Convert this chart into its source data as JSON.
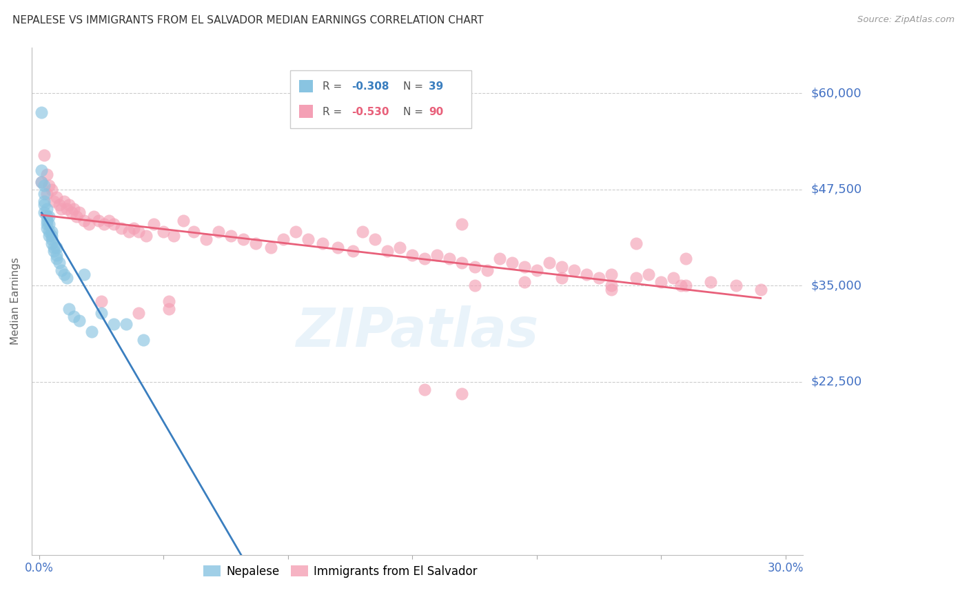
{
  "title": "NEPALESE VS IMMIGRANTS FROM EL SALVADOR MEDIAN EARNINGS CORRELATION CHART",
  "source": "Source: ZipAtlas.com",
  "ylabel": "Median Earnings",
  "color_blue": "#89c4e1",
  "color_pink": "#f4a0b5",
  "color_blue_line": "#3a7ebf",
  "color_pink_line": "#e8607a",
  "color_blue_dash": "#a0c8e8",
  "color_axis_labels": "#4472C4",
  "watermark": "ZIPatlas",
  "ymin": 0,
  "ymax": 66000,
  "xmin": -0.003,
  "xmax": 0.307,
  "ytick_vals": [
    22500,
    35000,
    47500,
    60000
  ],
  "ytick_labels": [
    "$22,500",
    "$35,000",
    "$47,500",
    "$60,000"
  ],
  "legend_box_blue_r": "R = ",
  "legend_box_blue_r_val": "-0.308",
  "legend_box_blue_n": "N = ",
  "legend_box_blue_n_val": "39",
  "legend_box_pink_r": "R = ",
  "legend_box_pink_r_val": "-0.530",
  "legend_box_pink_n": "N = ",
  "legend_box_pink_n_val": "90",
  "nepalese_x": [
    0.001,
    0.001,
    0.001,
    0.002,
    0.002,
    0.002,
    0.002,
    0.002,
    0.003,
    0.003,
    0.003,
    0.003,
    0.003,
    0.004,
    0.004,
    0.004,
    0.004,
    0.005,
    0.005,
    0.005,
    0.005,
    0.006,
    0.006,
    0.007,
    0.007,
    0.007,
    0.008,
    0.009,
    0.01,
    0.011,
    0.012,
    0.014,
    0.016,
    0.018,
    0.021,
    0.025,
    0.03,
    0.035,
    0.042
  ],
  "nepalese_y": [
    57500,
    50000,
    48500,
    48000,
    47000,
    46000,
    45500,
    44500,
    45000,
    44000,
    43500,
    43000,
    42500,
    44000,
    43000,
    42000,
    41500,
    42000,
    41500,
    41000,
    40500,
    40000,
    39500,
    40000,
    39000,
    38500,
    38000,
    37000,
    36500,
    36000,
    32000,
    31000,
    30500,
    36500,
    29000,
    31500,
    30000,
    30000,
    28000
  ],
  "salvador_x": [
    0.001,
    0.002,
    0.003,
    0.003,
    0.004,
    0.005,
    0.006,
    0.007,
    0.008,
    0.009,
    0.01,
    0.011,
    0.012,
    0.013,
    0.014,
    0.015,
    0.016,
    0.018,
    0.02,
    0.022,
    0.024,
    0.026,
    0.028,
    0.03,
    0.033,
    0.036,
    0.038,
    0.04,
    0.043,
    0.046,
    0.05,
    0.054,
    0.058,
    0.062,
    0.067,
    0.072,
    0.077,
    0.082,
    0.087,
    0.093,
    0.098,
    0.103,
    0.108,
    0.114,
    0.12,
    0.126,
    0.13,
    0.135,
    0.14,
    0.145,
    0.15,
    0.155,
    0.16,
    0.165,
    0.17,
    0.175,
    0.18,
    0.185,
    0.19,
    0.195,
    0.2,
    0.205,
    0.21,
    0.215,
    0.22,
    0.225,
    0.23,
    0.24,
    0.25,
    0.255,
    0.258,
    0.175,
    0.195,
    0.21,
    0.23,
    0.245,
    0.26,
    0.27,
    0.28,
    0.29,
    0.155,
    0.17,
    0.052,
    0.052,
    0.17,
    0.23,
    0.24,
    0.26,
    0.025,
    0.04
  ],
  "salvador_y": [
    48500,
    52000,
    49500,
    47000,
    48000,
    47500,
    46000,
    46500,
    45500,
    45000,
    46000,
    45000,
    45500,
    44500,
    45000,
    44000,
    44500,
    43500,
    43000,
    44000,
    43500,
    43000,
    43500,
    43000,
    42500,
    42000,
    42500,
    42000,
    41500,
    43000,
    42000,
    41500,
    43500,
    42000,
    41000,
    42000,
    41500,
    41000,
    40500,
    40000,
    41000,
    42000,
    41000,
    40500,
    40000,
    39500,
    42000,
    41000,
    39500,
    40000,
    39000,
    38500,
    39000,
    38500,
    38000,
    37500,
    37000,
    38500,
    38000,
    37500,
    37000,
    38000,
    37500,
    37000,
    36500,
    36000,
    36500,
    36000,
    35500,
    36000,
    35000,
    35000,
    35500,
    36000,
    35000,
    36500,
    35000,
    35500,
    35000,
    34500,
    21500,
    21000,
    32000,
    33000,
    43000,
    34500,
    40500,
    38500,
    33000,
    31500
  ]
}
